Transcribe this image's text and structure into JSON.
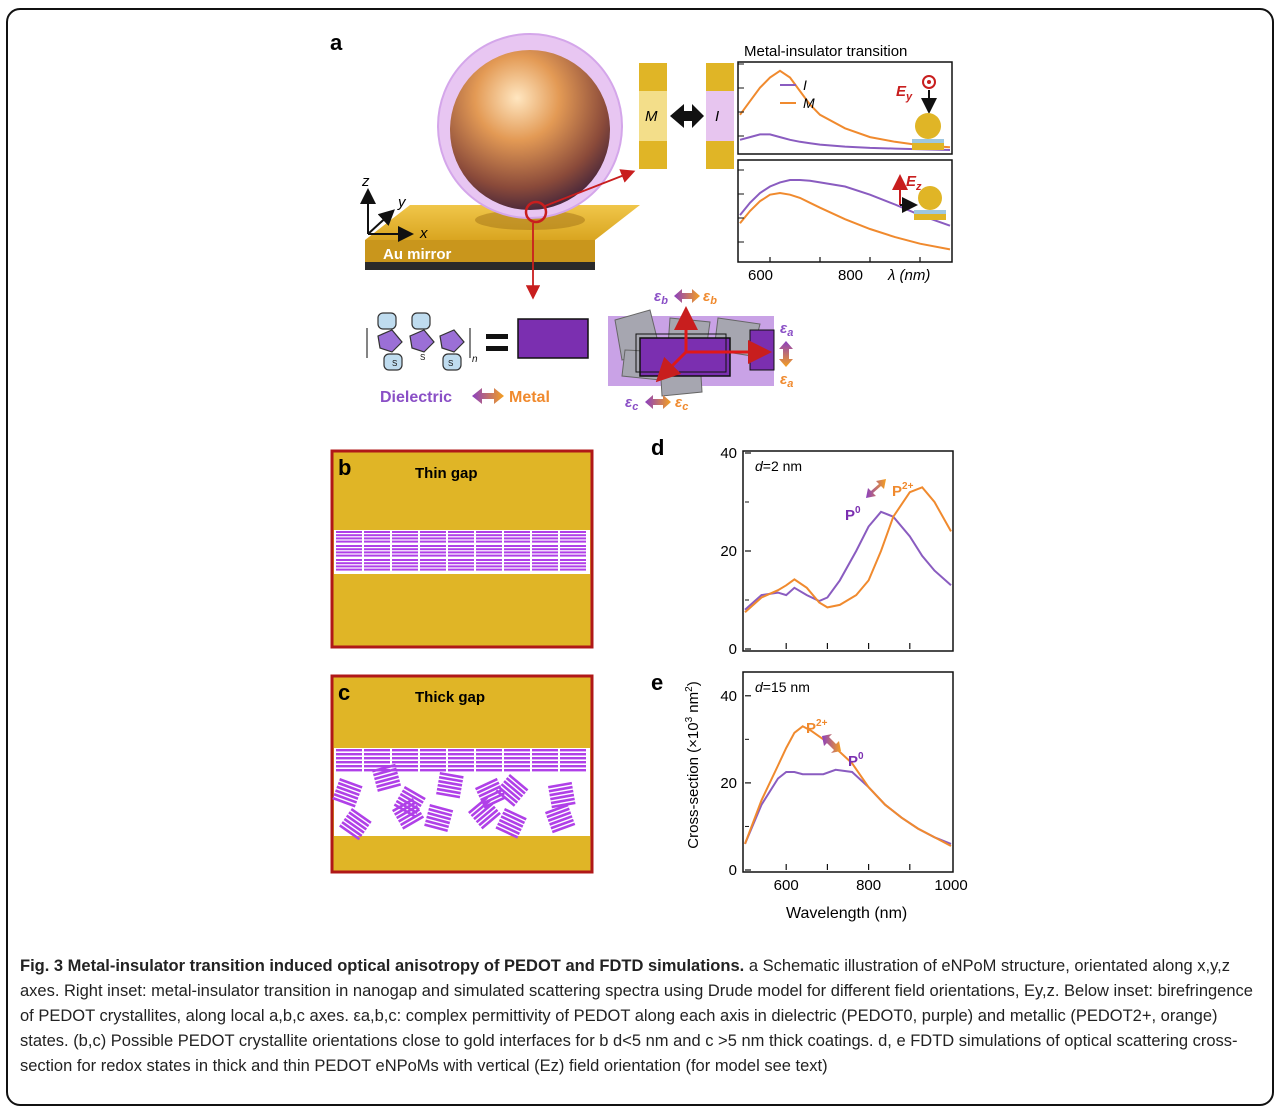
{
  "panel_labels": {
    "a": "a",
    "b": "b",
    "c": "c",
    "d": "d",
    "e": "e"
  },
  "panel_a": {
    "mirror_label": "Au mirror",
    "axis_x": "x",
    "axis_y": "y",
    "axis_z": "z",
    "state_m": "M",
    "state_i": "I",
    "mit_title": "Metal-insulator transition",
    "legend_i": "I",
    "legend_m": "M",
    "field_ey": "E",
    "field_ey_sub": "y",
    "field_ez": "E",
    "field_ez_sub": "z",
    "xticks": [
      "600",
      "800"
    ],
    "xlabel": "λ (nm)",
    "dielectric": "Dielectric",
    "metal": "Metal",
    "monomer_s": "S",
    "polymer_n": "n",
    "eps": "ε",
    "eps_a": "a",
    "eps_b": "b",
    "eps_c": "c"
  },
  "panel_b": {
    "title": "Thin gap"
  },
  "panel_c": {
    "title": "Thick gap"
  },
  "colors": {
    "purple": "#8a5cc0",
    "orange": "#f08a2e",
    "gold": "#e0b526",
    "violet": "#7b2fb0",
    "red": "#c81e1e"
  },
  "chart_data": [
    {
      "type": "line",
      "panel": "a-upper",
      "title": "Metal-insulator transition",
      "x": [
        540,
        560,
        580,
        600,
        620,
        640,
        660,
        680,
        700,
        750,
        800,
        850,
        900,
        960
      ],
      "series": [
        {
          "name": "I",
          "values": [
            0.18,
            0.22,
            0.26,
            0.26,
            0.22,
            0.18,
            0.15,
            0.13,
            0.11,
            0.08,
            0.06,
            0.05,
            0.04,
            0.03
          ]
        },
        {
          "name": "M",
          "values": [
            0.55,
            0.75,
            0.95,
            1.1,
            1.2,
            1.1,
            0.9,
            0.7,
            0.55,
            0.35,
            0.22,
            0.15,
            0.1,
            0.07
          ]
        }
      ],
      "xlim": [
        540,
        960
      ],
      "ylim": [
        0,
        1.3
      ]
    },
    {
      "type": "line",
      "panel": "a-lower",
      "x": [
        540,
        560,
        580,
        600,
        620,
        640,
        660,
        680,
        700,
        750,
        800,
        850,
        900,
        960
      ],
      "series": [
        {
          "name": "I",
          "values": [
            0.55,
            0.7,
            0.82,
            0.9,
            0.95,
            0.98,
            0.98,
            0.97,
            0.95,
            0.9,
            0.8,
            0.68,
            0.55,
            0.42
          ]
        },
        {
          "name": "M",
          "values": [
            0.45,
            0.6,
            0.72,
            0.8,
            0.82,
            0.8,
            0.76,
            0.7,
            0.64,
            0.5,
            0.38,
            0.28,
            0.2,
            0.13
          ]
        }
      ],
      "xticks": [
        "600",
        "800"
      ],
      "xlabel": "λ (nm)",
      "xlim": [
        540,
        960
      ],
      "ylim": [
        0,
        1.2
      ]
    },
    {
      "type": "line",
      "panel": "d",
      "annotation": "d=2 nm",
      "x": [
        500,
        540,
        580,
        600,
        620,
        650,
        680,
        700,
        730,
        770,
        800,
        830,
        860,
        900,
        930,
        960,
        1000
      ],
      "series": [
        {
          "name": "P0",
          "values": [
            8,
            11,
            11.5,
            11,
            12.5,
            11,
            9.8,
            10.5,
            14,
            20,
            25,
            28,
            27,
            23,
            19,
            16,
            13
          ]
        },
        {
          "name": "P2+",
          "values": [
            7.5,
            10.5,
            12,
            13,
            14.2,
            12.5,
            9.5,
            8.5,
            9,
            11,
            14,
            20,
            27,
            32,
            33,
            30,
            24
          ]
        }
      ],
      "ylim": [
        0,
        40
      ],
      "yticks": [
        0,
        20,
        40
      ],
      "xlim": [
        500,
        1000
      ],
      "labels": {
        "p0": "P",
        "p0_sup": "0",
        "p2": "P",
        "p2_sup": "2+"
      }
    },
    {
      "type": "line",
      "panel": "e",
      "annotation": "d=15 nm",
      "x": [
        500,
        540,
        580,
        600,
        620,
        640,
        660,
        690,
        720,
        760,
        800,
        840,
        880,
        920,
        960,
        1000
      ],
      "series": [
        {
          "name": "P0",
          "values": [
            6,
            15,
            21,
            22.5,
            22.5,
            22,
            22,
            22,
            23,
            22.5,
            19,
            15,
            12,
            9.5,
            7.5,
            6
          ]
        },
        {
          "name": "P2+",
          "values": [
            6,
            16,
            24,
            28,
            31.5,
            33,
            32,
            30,
            28,
            24.5,
            19,
            15,
            12,
            9.5,
            7.5,
            5.5
          ]
        }
      ],
      "ylim": [
        0,
        45
      ],
      "yticks": [
        0,
        20,
        40
      ],
      "xlim": [
        500,
        1000
      ],
      "xticks": [
        600,
        800,
        1000
      ],
      "xlabel": "Wavelength (nm)",
      "ylabel": "Cross-section (×10",
      "ylabel_sup": "3",
      "ylabel_end": " nm",
      "ylabel_sup2": "2",
      "ylabel_close": ")",
      "labels": {
        "p0": "P",
        "p0_sup": "0",
        "p2": "P",
        "p2_sup": "2+"
      }
    }
  ],
  "caption": {
    "title": "Fig. 3 Metal-insulator transition induced optical anisotropy of PEDOT and FDTD simulations.",
    "text": " a Schematic illustration of eNPoM structure, orientated along x,y,z axes. Right inset: metal-insulator transition in nanogap and simulated scattering spectra using Drude model for different field orientations, Ey,z. Below inset: birefringence of PEDOT crystallites, along local a,b,c axes. εa,b,c: complex permittivity of PEDOT along each axis in dielectric (PEDOT0, purple) and metallic (PEDOT2+, orange) states. (b,c) Possible PEDOT crystallite orientations close to gold interfaces for b d<5 nm and c >5 nm thick coatings. d, e FDTD simulations of optical scattering cross-section for redox states in thick and thin PEDOT eNPoMs with vertical (Ez) field orientation (for model see text)"
  }
}
